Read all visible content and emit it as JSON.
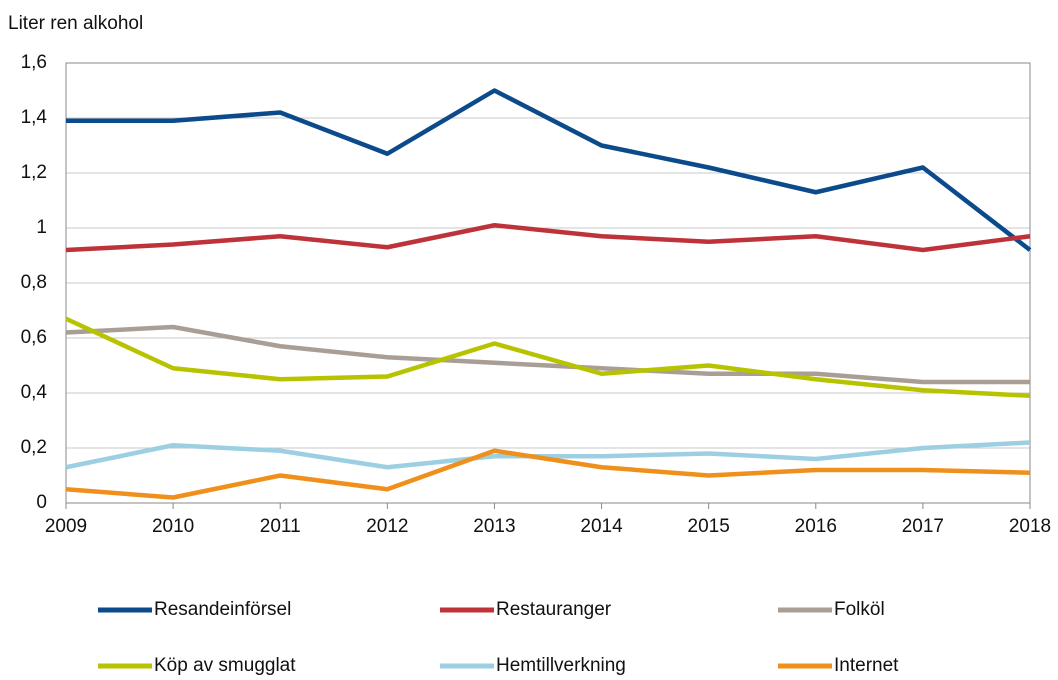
{
  "chart_data": {
    "type": "line",
    "y_label": "Liter ren alkohol",
    "x": [
      2009,
      2010,
      2011,
      2012,
      2013,
      2014,
      2015,
      2016,
      2017,
      2018
    ],
    "xlim": [
      2009,
      2018
    ],
    "xticks": [
      2009,
      2010,
      2011,
      2012,
      2013,
      2014,
      2015,
      2016,
      2017,
      2018
    ],
    "ylim": [
      0,
      1.6
    ],
    "yticks": [
      0,
      {
        "value": 0.2,
        "label": "0,2"
      },
      {
        "value": 0.4,
        "label": "0,4"
      },
      {
        "value": 0.6,
        "label": "0,6"
      },
      {
        "value": 0.8,
        "label": "0,8"
      },
      1,
      {
        "value": 1.2,
        "label": "1,2"
      },
      {
        "value": 1.4,
        "label": "1,4"
      },
      {
        "value": 1.6,
        "label": "1,6"
      }
    ],
    "grid": true,
    "series": [
      {
        "name": "Resandeinförsel",
        "color": "#0b4a8b",
        "values": [
          1.39,
          1.39,
          1.42,
          1.27,
          1.5,
          1.3,
          1.22,
          1.13,
          1.22,
          0.92
        ]
      },
      {
        "name": "Restauranger",
        "color": "#be3339",
        "values": [
          0.92,
          0.94,
          0.97,
          0.93,
          1.01,
          0.97,
          0.95,
          0.97,
          0.92,
          0.97
        ]
      },
      {
        "name": "Folköl",
        "color": "#a99e96",
        "values": [
          0.62,
          0.64,
          0.57,
          0.53,
          0.51,
          0.49,
          0.47,
          0.47,
          0.44,
          0.44
        ]
      },
      {
        "name": "Köp av smugglat",
        "color": "#b8c300",
        "values": [
          0.67,
          0.49,
          0.45,
          0.46,
          0.58,
          0.47,
          0.5,
          0.45,
          0.41,
          0.39
        ]
      },
      {
        "name": "Hemtillverkning",
        "color": "#9dcfe2",
        "values": [
          0.13,
          0.21,
          0.19,
          0.13,
          0.17,
          0.17,
          0.18,
          0.16,
          0.2,
          0.22
        ]
      },
      {
        "name": "Internet",
        "color": "#f0901c",
        "values": [
          0.05,
          0.02,
          0.1,
          0.05,
          0.19,
          0.13,
          0.1,
          0.12,
          0.12,
          0.11
        ]
      }
    ]
  }
}
